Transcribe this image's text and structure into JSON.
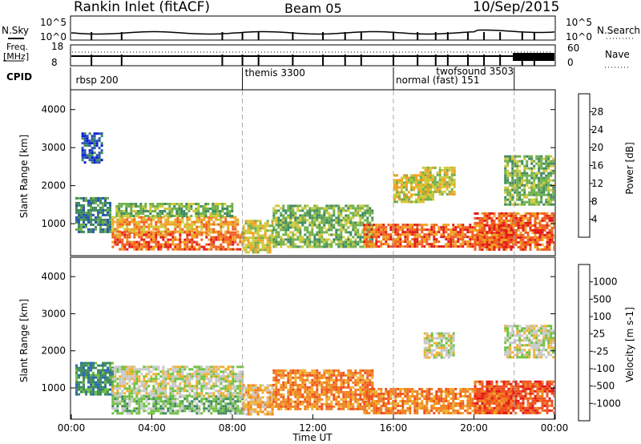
{
  "header": {
    "station": "Rankin Inlet (fitACF)",
    "beam": "Beam 05",
    "date": "10/Sep/2015"
  },
  "summary_panels": {
    "nsky": {
      "label": "N.Sky",
      "tick_top": "10^5",
      "tick_bottom": "10^0"
    },
    "nsearch": {
      "label": "N.Search",
      "tick_top": "10^5",
      "tick_bottom": "10^0"
    },
    "freq": {
      "label_line1": "Freq.",
      "label_line2": "[MHz]",
      "tick_top": "18",
      "tick_bottom": "8"
    },
    "nave": {
      "label": "Nave",
      "tick_top": "60",
      "tick_bottom": "0"
    },
    "cpid": {
      "label": "CPID",
      "programs": [
        {
          "name": "rbsp 200",
          "start_hour": 0.1
        },
        {
          "name": "themis 3300",
          "start_hour": 8.5
        },
        {
          "name": "normal (fast) 151",
          "start_hour": 16.0
        },
        {
          "name": "twofsound 3503",
          "start_hour": 18.0
        }
      ],
      "boundaries_hours": [
        8.5,
        16.0,
        22.0
      ]
    }
  },
  "chart_data": [
    {
      "type": "heatmap",
      "name": "power",
      "ylabel": "Slant Range [km]",
      "ylim": [
        180,
        4500
      ],
      "yticks": [
        1000,
        2000,
        3000,
        4000
      ],
      "xlim": [
        0,
        24
      ],
      "colorbar": {
        "label": "Power [dB]",
        "ticks": [
          "4",
          "8",
          "12",
          "16",
          "20",
          "24",
          "28"
        ],
        "range": [
          0,
          30
        ],
        "colors": [
          "#0a1ad8",
          "#2a55b0",
          "#3f8a5f",
          "#6fb04a",
          "#cfc83a",
          "#f0a020",
          "#f06020",
          "#e21a1a"
        ]
      },
      "regions": [
        {
          "t0": 0.2,
          "t1": 1.9,
          "r0": 800,
          "r1": 1700,
          "level": 2
        },
        {
          "t0": 0.5,
          "t1": 1.5,
          "r0": 2600,
          "r1": 3400,
          "level": 1
        },
        {
          "t0": 2.0,
          "t1": 8.5,
          "r0": 300,
          "r1": 800,
          "level": 6
        },
        {
          "t0": 2.0,
          "t1": 8.3,
          "r0": 800,
          "r1": 1200,
          "level": 5
        },
        {
          "t0": 2.2,
          "t1": 8.0,
          "r0": 1200,
          "r1": 1550,
          "level": 3
        },
        {
          "t0": 8.5,
          "t1": 10.0,
          "r0": 250,
          "r1": 1100,
          "level": 4
        },
        {
          "t0": 10.0,
          "t1": 15.0,
          "r0": 400,
          "r1": 1500,
          "level": 3
        },
        {
          "t0": 14.5,
          "t1": 22.0,
          "r0": 400,
          "r1": 1000,
          "level": 6
        },
        {
          "t0": 16.0,
          "t1": 18.0,
          "r0": 1600,
          "r1": 2300,
          "level": 4
        },
        {
          "t0": 17.3,
          "t1": 19.0,
          "r0": 1800,
          "r1": 2500,
          "level": 4
        },
        {
          "t0": 20.0,
          "t1": 24.0,
          "r0": 300,
          "r1": 1300,
          "level": 6
        },
        {
          "t0": 21.5,
          "t1": 24.0,
          "r0": 1500,
          "r1": 2800,
          "level": 3
        }
      ]
    },
    {
      "type": "heatmap",
      "name": "velocity",
      "ylabel": "Slant Range [km]",
      "ylim": [
        180,
        4500
      ],
      "yticks": [
        1000,
        2000,
        3000,
        4000
      ],
      "xlim": [
        0,
        24
      ],
      "xticks": [
        "00:00",
        "04:00",
        "08:00",
        "12:00",
        "16:00",
        "20:00",
        "00:00"
      ],
      "xlabel": "Time UT",
      "colorbar": {
        "label": "Velocity [m s-1]",
        "ticks": [
          "1000",
          "500",
          "100",
          "25",
          "-25",
          "-100",
          "-500",
          "-1000"
        ],
        "colors": [
          "#1a3ac8",
          "#2a6ab0",
          "#3f8a5f",
          "#6fc040",
          "#c8c8c8",
          "#f0b030",
          "#f08020",
          "#f05020",
          "#e21a1a"
        ]
      },
      "regions": [
        {
          "t0": 0.2,
          "t1": 2.0,
          "r0": 800,
          "r1": 1700,
          "level": 2
        },
        {
          "t0": 2.0,
          "t1": 8.5,
          "r0": 300,
          "r1": 800,
          "level": 3
        },
        {
          "t0": 2.0,
          "t1": 8.5,
          "r0": 800,
          "r1": 1600,
          "level": 4
        },
        {
          "t0": 8.5,
          "t1": 10.0,
          "r0": 300,
          "r1": 1100,
          "level": 5
        },
        {
          "t0": 10.0,
          "t1": 15.0,
          "r0": 400,
          "r1": 1500,
          "level": 6
        },
        {
          "t0": 14.5,
          "t1": 22.0,
          "r0": 300,
          "r1": 1000,
          "level": 6
        },
        {
          "t0": 17.5,
          "t1": 19.0,
          "r0": 1800,
          "r1": 2500,
          "level": 4
        },
        {
          "t0": 20.0,
          "t1": 24.0,
          "r0": 300,
          "r1": 1200,
          "level": 7
        },
        {
          "t0": 21.5,
          "t1": 24.0,
          "r0": 1800,
          "r1": 2700,
          "level": 4
        }
      ]
    }
  ]
}
